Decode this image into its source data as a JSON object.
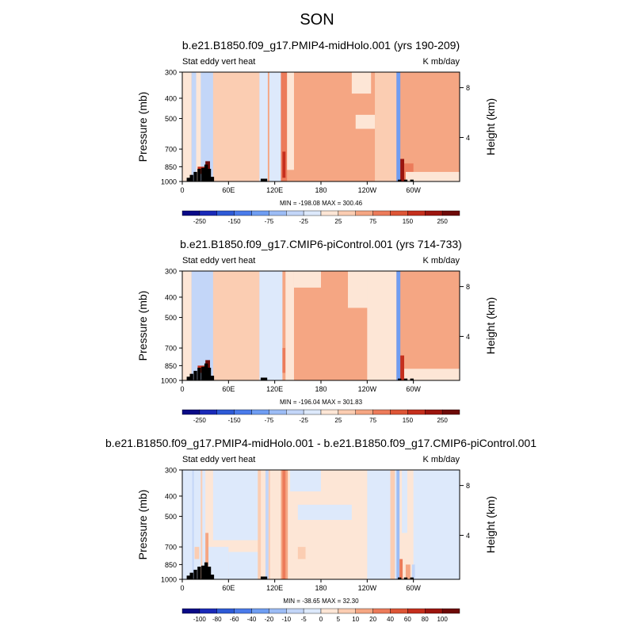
{
  "figure": {
    "title": "SON"
  },
  "colors": {
    "full_palette": [
      "#0a0a86",
      "#1a2ab8",
      "#2e5ad6",
      "#4a7bea",
      "#6f9df2",
      "#9cbcf5",
      "#c3d6f8",
      "#dde9fb",
      "#fde6d6",
      "#fbcdb2",
      "#f5a683",
      "#ec7b5a",
      "#dd5536",
      "#c52f1d",
      "#9c150e",
      "#6e0a08"
    ],
    "land_mask": "#000000",
    "frame": "#000000"
  },
  "chart_data": [
    {
      "type": "heatmap",
      "title": "b.e21.B1850.f09_g17.PMIP4-midHolo.001 (yrs 190-209)",
      "left_label": "Stat eddy vert heat",
      "right_label": "K mb/day",
      "ylabel": "Pressure (mb)",
      "ylabel_right": "Height (km)",
      "y_scale": "log",
      "ylim": [
        1000,
        300
      ],
      "yticks": [
        1000,
        850,
        700,
        500,
        400,
        300
      ],
      "right_ticks": [
        {
          "label": "4",
          "p": 616
        },
        {
          "label": "8",
          "p": 356
        }
      ],
      "xlim": [
        0,
        360
      ],
      "xticks": [
        {
          "label": "0",
          "lon": 0
        },
        {
          "label": "60E",
          "lon": 60
        },
        {
          "label": "120E",
          "lon": 120
        },
        {
          "label": "180",
          "lon": 180
        },
        {
          "label": "120W",
          "lon": 240
        },
        {
          "label": "60W",
          "lon": 300
        }
      ],
      "stats": "MIN = -198.08   MAX = 300.46",
      "colorbar_labels": [
        "-250",
        "-150",
        "-75",
        "-25",
        "25",
        "75",
        "150",
        "250"
      ],
      "background_level": 25,
      "features": [
        {
          "lon_min": 0,
          "lon_max": 12,
          "p_top": 300,
          "p_bot": 1000,
          "value": -10
        },
        {
          "lon_min": 12,
          "lon_max": 42,
          "p_top": 300,
          "p_bot": 1000,
          "value": -30
        },
        {
          "lon_min": 18,
          "lon_max": 24,
          "p_top": 300,
          "p_bot": 1000,
          "value": -10
        },
        {
          "lon_min": 40,
          "lon_max": 100,
          "p_top": 300,
          "p_bot": 1000,
          "value": 10
        },
        {
          "lon_min": 100,
          "lon_max": 128,
          "p_top": 300,
          "p_bot": 1000,
          "value": -15
        },
        {
          "lon_min": 111,
          "lon_max": 113,
          "p_top": 300,
          "p_bot": 1000,
          "value": 40
        },
        {
          "lon_min": 128,
          "lon_max": 136,
          "p_top": 300,
          "p_bot": 1000,
          "value": 60
        },
        {
          "lon_min": 130,
          "lon_max": 134,
          "p_top": 720,
          "p_bot": 960,
          "value": 120
        },
        {
          "lon_min": 136,
          "lon_max": 145,
          "p_top": 300,
          "p_bot": 880,
          "value": -10
        },
        {
          "lon_min": 220,
          "lon_max": 245,
          "p_top": 300,
          "p_bot": 380,
          "value": -10
        },
        {
          "lon_min": 250,
          "lon_max": 278,
          "p_top": 300,
          "p_bot": 1000,
          "value": 10
        },
        {
          "lon_min": 278,
          "lon_max": 283,
          "p_top": 300,
          "p_bot": 1000,
          "value": -100
        },
        {
          "lon_min": 283,
          "lon_max": 288,
          "p_top": 780,
          "p_bot": 1000,
          "value": 150
        },
        {
          "lon_min": 288,
          "lon_max": 300,
          "p_top": 820,
          "p_bot": 1000,
          "value": 60
        },
        {
          "lon_min": 290,
          "lon_max": 360,
          "p_top": 900,
          "p_bot": 1000,
          "value": -10
        },
        {
          "lon_min": 225,
          "lon_max": 250,
          "p_top": 480,
          "p_bot": 560,
          "value": -10
        },
        {
          "lon_min": 20,
          "lon_max": 30,
          "p_top": 850,
          "p_bot": 920,
          "value": 120
        },
        {
          "lon_min": 30,
          "lon_max": 36,
          "p_top": 800,
          "p_bot": 900,
          "value": 250
        }
      ],
      "land_columns": [
        [
          8,
          960
        ],
        [
          12,
          930
        ],
        [
          17,
          900
        ],
        [
          22,
          870
        ],
        [
          27,
          860
        ],
        [
          31,
          830
        ],
        [
          35,
          870
        ],
        [
          39,
          950
        ],
        [
          104,
          970
        ],
        [
          108,
          970
        ],
        [
          282,
          980
        ],
        [
          290,
          980
        ],
        [
          298,
          980
        ]
      ]
    },
    {
      "type": "heatmap",
      "title": "b.e21.B1850.f09_g17.CMIP6-piControl.001 (yrs 714-733)",
      "left_label": "Stat eddy vert heat",
      "right_label": "K mb/day",
      "ylabel": "Pressure (mb)",
      "ylabel_right": "Height (km)",
      "y_scale": "log",
      "ylim": [
        1000,
        300
      ],
      "yticks": [
        1000,
        850,
        700,
        500,
        400,
        300
      ],
      "right_ticks": [
        {
          "label": "4",
          "p": 616
        },
        {
          "label": "8",
          "p": 356
        }
      ],
      "xlim": [
        0,
        360
      ],
      "xticks": [
        {
          "label": "0",
          "lon": 0
        },
        {
          "label": "60E",
          "lon": 60
        },
        {
          "label": "120E",
          "lon": 120
        },
        {
          "label": "180",
          "lon": 180
        },
        {
          "label": "120W",
          "lon": 240
        },
        {
          "label": "60W",
          "lon": 300
        }
      ],
      "stats": "MIN = -196.04   MAX = 301.83",
      "colorbar_labels": [
        "-250",
        "-150",
        "-75",
        "-25",
        "25",
        "75",
        "150",
        "250"
      ],
      "background_level": 25,
      "features": [
        {
          "lon_min": 0,
          "lon_max": 12,
          "p_top": 300,
          "p_bot": 1000,
          "value": -10
        },
        {
          "lon_min": 12,
          "lon_max": 42,
          "p_top": 300,
          "p_bot": 1000,
          "value": -30
        },
        {
          "lon_min": 40,
          "lon_max": 100,
          "p_top": 300,
          "p_bot": 1000,
          "value": 10
        },
        {
          "lon_min": 100,
          "lon_max": 130,
          "p_top": 300,
          "p_bot": 1000,
          "value": -20
        },
        {
          "lon_min": 130,
          "lon_max": 134,
          "p_top": 700,
          "p_bot": 920,
          "value": 60
        },
        {
          "lon_min": 134,
          "lon_max": 145,
          "p_top": 300,
          "p_bot": 1000,
          "value": -10
        },
        {
          "lon_min": 145,
          "lon_max": 180,
          "p_top": 300,
          "p_bot": 360,
          "value": -10
        },
        {
          "lon_min": 215,
          "lon_max": 245,
          "p_top": 300,
          "p_bot": 450,
          "value": -10
        },
        {
          "lon_min": 240,
          "lon_max": 278,
          "p_top": 300,
          "p_bot": 1000,
          "value": -10
        },
        {
          "lon_min": 278,
          "lon_max": 283,
          "p_top": 300,
          "p_bot": 1000,
          "value": -100
        },
        {
          "lon_min": 283,
          "lon_max": 288,
          "p_top": 760,
          "p_bot": 1000,
          "value": 100
        },
        {
          "lon_min": 288,
          "lon_max": 360,
          "p_top": 880,
          "p_bot": 1000,
          "value": -10
        },
        {
          "lon_min": 20,
          "lon_max": 30,
          "p_top": 850,
          "p_bot": 920,
          "value": 120
        },
        {
          "lon_min": 30,
          "lon_max": 36,
          "p_top": 800,
          "p_bot": 900,
          "value": 250
        }
      ],
      "land_columns": [
        [
          8,
          960
        ],
        [
          12,
          930
        ],
        [
          17,
          900
        ],
        [
          22,
          870
        ],
        [
          27,
          860
        ],
        [
          31,
          830
        ],
        [
          35,
          870
        ],
        [
          39,
          950
        ],
        [
          104,
          970
        ],
        [
          108,
          970
        ],
        [
          282,
          980
        ],
        [
          290,
          980
        ],
        [
          298,
          980
        ]
      ]
    },
    {
      "type": "heatmap",
      "title": "b.e21.B1850.f09_g17.PMIP4-midHolo.001 - b.e21.B1850.f09_g17.CMIP6-piControl.001",
      "left_label": "Stat eddy vert heat",
      "right_label": "K mb/day",
      "ylabel": "Pressure (mb)",
      "ylabel_right": "Height (km)",
      "y_scale": "log",
      "ylim": [
        1000,
        300
      ],
      "yticks": [
        1000,
        850,
        700,
        500,
        400,
        300
      ],
      "right_ticks": [
        {
          "label": "4",
          "p": 616
        },
        {
          "label": "8",
          "p": 356
        }
      ],
      "xlim": [
        0,
        360
      ],
      "xticks": [
        {
          "label": "0",
          "lon": 0
        },
        {
          "label": "60E",
          "lon": 60
        },
        {
          "label": "120E",
          "lon": 120
        },
        {
          "label": "180",
          "lon": 180
        },
        {
          "label": "120W",
          "lon": 240
        },
        {
          "label": "60W",
          "lon": 300
        }
      ],
      "stats": "MIN = -38.65   MAX =  32.30",
      "colorbar_labels": [
        "-100",
        "-80",
        "-60",
        "-40",
        "-20",
        "-10",
        "-5",
        "0",
        "5",
        "10",
        "20",
        "40",
        "60",
        "80",
        "100"
      ],
      "background_level": 2,
      "features": [
        {
          "lon_min": 0,
          "lon_max": 30,
          "p_top": 300,
          "p_bot": 1000,
          "value": -3
        },
        {
          "lon_min": 30,
          "lon_max": 60,
          "p_top": 700,
          "p_bot": 1000,
          "value": -3
        },
        {
          "lon_min": 40,
          "lon_max": 100,
          "p_top": 300,
          "p_bot": 650,
          "value": -3
        },
        {
          "lon_min": 60,
          "lon_max": 100,
          "p_top": 740,
          "p_bot": 1000,
          "value": -3
        },
        {
          "lon_min": 140,
          "lon_max": 180,
          "p_top": 300,
          "p_bot": 380,
          "value": -3
        },
        {
          "lon_min": 150,
          "lon_max": 220,
          "p_top": 440,
          "p_bot": 520,
          "value": -3
        },
        {
          "lon_min": 240,
          "lon_max": 278,
          "p_top": 300,
          "p_bot": 1000,
          "value": -3
        },
        {
          "lon_min": 285,
          "lon_max": 292,
          "p_top": 300,
          "p_bot": 600,
          "value": -3
        },
        {
          "lon_min": 300,
          "lon_max": 360,
          "p_top": 300,
          "p_bot": 1000,
          "value": -3
        },
        {
          "lon_min": 13,
          "lon_max": 15,
          "p_top": 300,
          "p_bot": 1000,
          "value": -7
        },
        {
          "lon_min": 24,
          "lon_max": 26,
          "p_top": 300,
          "p_bot": 1000,
          "value": 7
        },
        {
          "lon_min": 30,
          "lon_max": 34,
          "p_top": 600,
          "p_bot": 1000,
          "value": 15
        },
        {
          "lon_min": 98,
          "lon_max": 102,
          "p_top": 300,
          "p_bot": 1000,
          "value": 7
        },
        {
          "lon_min": 108,
          "lon_max": 112,
          "p_top": 300,
          "p_bot": 1000,
          "value": -7
        },
        {
          "lon_min": 112,
          "lon_max": 114,
          "p_top": 300,
          "p_bot": 1000,
          "value": 7
        },
        {
          "lon_min": 128,
          "lon_max": 137,
          "p_top": 300,
          "p_bot": 1000,
          "value": 15
        },
        {
          "lon_min": 130,
          "lon_max": 134,
          "p_top": 300,
          "p_bot": 1000,
          "value": 30
        },
        {
          "lon_min": 270,
          "lon_max": 276,
          "p_top": 300,
          "p_bot": 1000,
          "value": 7
        },
        {
          "lon_min": 278,
          "lon_max": 282,
          "p_top": 300,
          "p_bot": 1000,
          "value": -15
        },
        {
          "lon_min": 282,
          "lon_max": 286,
          "p_top": 800,
          "p_bot": 1000,
          "value": 30
        },
        {
          "lon_min": 290,
          "lon_max": 296,
          "p_top": 850,
          "p_bot": 1000,
          "value": 15
        },
        {
          "lon_min": 298,
          "lon_max": 302,
          "p_top": 850,
          "p_bot": 1000,
          "value": -7
        },
        {
          "lon_min": 16,
          "lon_max": 22,
          "p_top": 700,
          "p_bot": 800,
          "value": 7
        },
        {
          "lon_min": 150,
          "lon_max": 160,
          "p_top": 700,
          "p_bot": 800,
          "value": 7
        }
      ],
      "land_columns": [
        [
          8,
          960
        ],
        [
          12,
          930
        ],
        [
          17,
          900
        ],
        [
          22,
          870
        ],
        [
          27,
          860
        ],
        [
          31,
          830
        ],
        [
          35,
          870
        ],
        [
          39,
          950
        ],
        [
          104,
          970
        ],
        [
          108,
          970
        ],
        [
          282,
          980
        ],
        [
          290,
          980
        ],
        [
          298,
          980
        ]
      ]
    }
  ]
}
